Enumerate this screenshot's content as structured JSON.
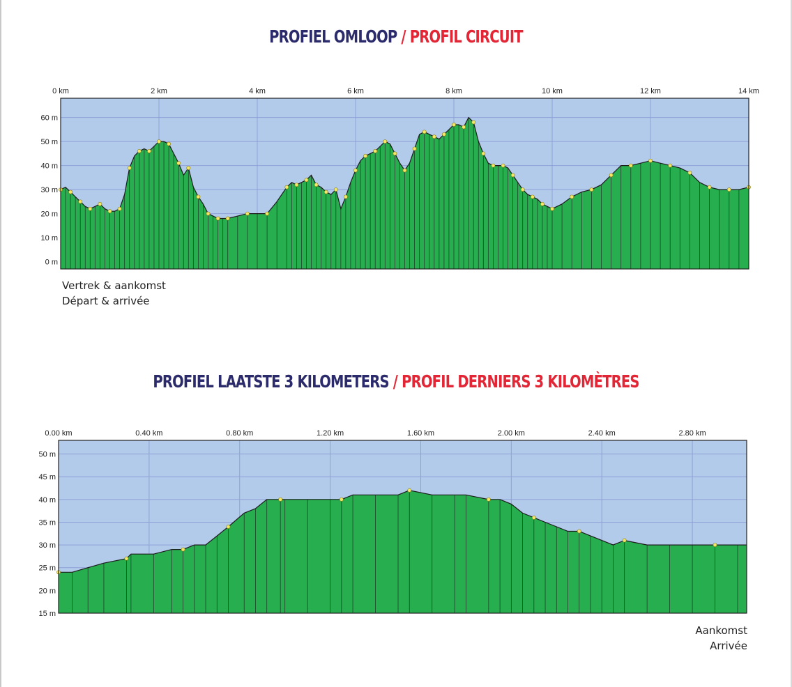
{
  "page": {
    "title1_nl": "PROFIEL OMLOOP",
    "title1_sep": " / ",
    "title1_fr": "PROFIL CIRCUIT",
    "caption1_line1": "Vertrek & aankomst",
    "caption1_line2": "Départ & arrivée",
    "title2_nl": "PROFIEL LAATSTE 3 KILOMETERS",
    "title2_sep": " / ",
    "title2_fr": "PROFIL DERNIERS 3 KILOMÈTRES",
    "caption2_line1": "Aankomst",
    "caption2_line2": "Arrivée"
  },
  "colors": {
    "navy": "#2b2a6b",
    "red": "#e32636",
    "sky": "#b3cbea",
    "grid": "#8fa0d8",
    "fill": "#27ae4f",
    "outline": "#1c1c1c",
    "marker": "#f3e86a"
  },
  "chart_data": [
    {
      "type": "area",
      "title": "PROFIEL OMLOOP / PROFIL CIRCUIT",
      "xlabel": "",
      "ylabel": "",
      "xlim": [
        0,
        14
      ],
      "ylim": [
        -3,
        68
      ],
      "x_ticks": [
        0,
        2,
        4,
        6,
        8,
        10,
        12,
        14
      ],
      "x_tick_labels": [
        "0 km",
        "2 km",
        "4 km",
        "6 km",
        "8 km",
        "10 km",
        "12 km",
        "14 km"
      ],
      "y_ticks": [
        0,
        10,
        20,
        30,
        40,
        50,
        60
      ],
      "y_tick_labels": [
        "0 m",
        "10 m",
        "20 m",
        "30 m",
        "40 m",
        "50 m",
        "60 m"
      ],
      "grid": true,
      "series": [
        {
          "x": [
            0,
            0.1,
            0.2,
            0.3,
            0.4,
            0.5,
            0.6,
            0.7,
            0.8,
            0.9,
            1.0,
            1.1,
            1.2,
            1.3,
            1.4,
            1.5,
            1.6,
            1.7,
            1.8,
            1.9,
            2.0,
            2.1,
            2.2,
            2.3,
            2.4,
            2.5,
            2.6,
            2.7,
            2.8,
            2.9,
            3.0,
            3.1,
            3.2,
            3.3,
            3.4,
            3.6,
            3.8,
            4.0,
            4.2,
            4.4,
            4.6,
            4.7,
            4.8,
            4.9,
            5.0,
            5.1,
            5.2,
            5.3,
            5.4,
            5.5,
            5.6,
            5.7,
            5.8,
            5.9,
            6.0,
            6.1,
            6.2,
            6.3,
            6.4,
            6.5,
            6.6,
            6.7,
            6.8,
            6.9,
            7.0,
            7.1,
            7.2,
            7.3,
            7.4,
            7.5,
            7.6,
            7.7,
            7.8,
            7.9,
            8.0,
            8.1,
            8.2,
            8.3,
            8.4,
            8.5,
            8.6,
            8.7,
            8.8,
            8.9,
            9.0,
            9.1,
            9.2,
            9.3,
            9.4,
            9.5,
            9.6,
            9.7,
            9.8,
            9.9,
            10.0,
            10.2,
            10.4,
            10.6,
            10.8,
            11.0,
            11.2,
            11.4,
            11.6,
            11.8,
            12.0,
            12.2,
            12.4,
            12.6,
            12.8,
            13.0,
            13.2,
            13.4,
            13.6,
            13.8,
            14.0
          ],
          "y": [
            30,
            31,
            29,
            27,
            25,
            23,
            22,
            23,
            24,
            22,
            21,
            21,
            22,
            28,
            39,
            44,
            46,
            47,
            46,
            48,
            50,
            50,
            49,
            45,
            41,
            36,
            39,
            31,
            27,
            24,
            20,
            19,
            18,
            18,
            18,
            19,
            20,
            20,
            20,
            25,
            31,
            33,
            32,
            33,
            34,
            36,
            32,
            31,
            29,
            28,
            30,
            22,
            27,
            33,
            38,
            42,
            44,
            45,
            46,
            48,
            50,
            49,
            45,
            41,
            38,
            41,
            47,
            53,
            54,
            53,
            52,
            51,
            53,
            55,
            57,
            57,
            56,
            60,
            58,
            50,
            45,
            41,
            40,
            40,
            40,
            39,
            36,
            33,
            30,
            28,
            27,
            26,
            24,
            23,
            22,
            24,
            27,
            29,
            30,
            32,
            36,
            40,
            40,
            41,
            42,
            41,
            40,
            39,
            37,
            33,
            31,
            30,
            30,
            30,
            31
          ]
        }
      ]
    },
    {
      "type": "area",
      "title": "PROFIEL LAATSTE 3 KILOMETERS / PROFIL DERNIERS 3 KILOMÈTRES",
      "xlabel": "",
      "ylabel": "",
      "xlim": [
        0,
        3.04
      ],
      "ylim": [
        15,
        53
      ],
      "x_ticks": [
        0,
        0.4,
        0.8,
        1.2,
        1.6,
        2.0,
        2.4,
        2.8
      ],
      "x_tick_labels": [
        "0.00 km",
        "0.40 km",
        "0.80 km",
        "1.20 km",
        "1.60 km",
        "2.00 km",
        "2.40 km",
        "2.80 km"
      ],
      "y_ticks": [
        15,
        20,
        25,
        30,
        35,
        40,
        45,
        50
      ],
      "y_tick_labels": [
        "15 m",
        "20 m",
        "25 m",
        "30 m",
        "35 m",
        "40 m",
        "45 m",
        "50 m"
      ],
      "grid": true,
      "series": [
        {
          "x": [
            0,
            0.06,
            0.13,
            0.2,
            0.3,
            0.32,
            0.42,
            0.5,
            0.55,
            0.6,
            0.65,
            0.7,
            0.75,
            0.82,
            0.87,
            0.92,
            0.98,
            1.0,
            1.1,
            1.2,
            1.25,
            1.3,
            1.4,
            1.5,
            1.55,
            1.65,
            1.75,
            1.8,
            1.9,
            1.95,
            2.0,
            2.05,
            2.1,
            2.15,
            2.2,
            2.25,
            2.3,
            2.35,
            2.4,
            2.45,
            2.5,
            2.6,
            2.7,
            2.8,
            2.9,
            3.0,
            3.04
          ],
          "y": [
            24,
            24,
            25,
            26,
            27,
            28,
            28,
            29,
            29,
            30,
            30,
            32,
            34,
            37,
            38,
            40,
            40,
            40,
            40,
            40,
            40,
            41,
            41,
            41,
            42,
            41,
            41,
            41,
            40,
            40,
            39,
            37,
            36,
            35,
            34,
            33,
            33,
            32,
            31,
            30,
            31,
            30,
            30,
            30,
            30,
            30,
            30
          ]
        }
      ]
    }
  ]
}
